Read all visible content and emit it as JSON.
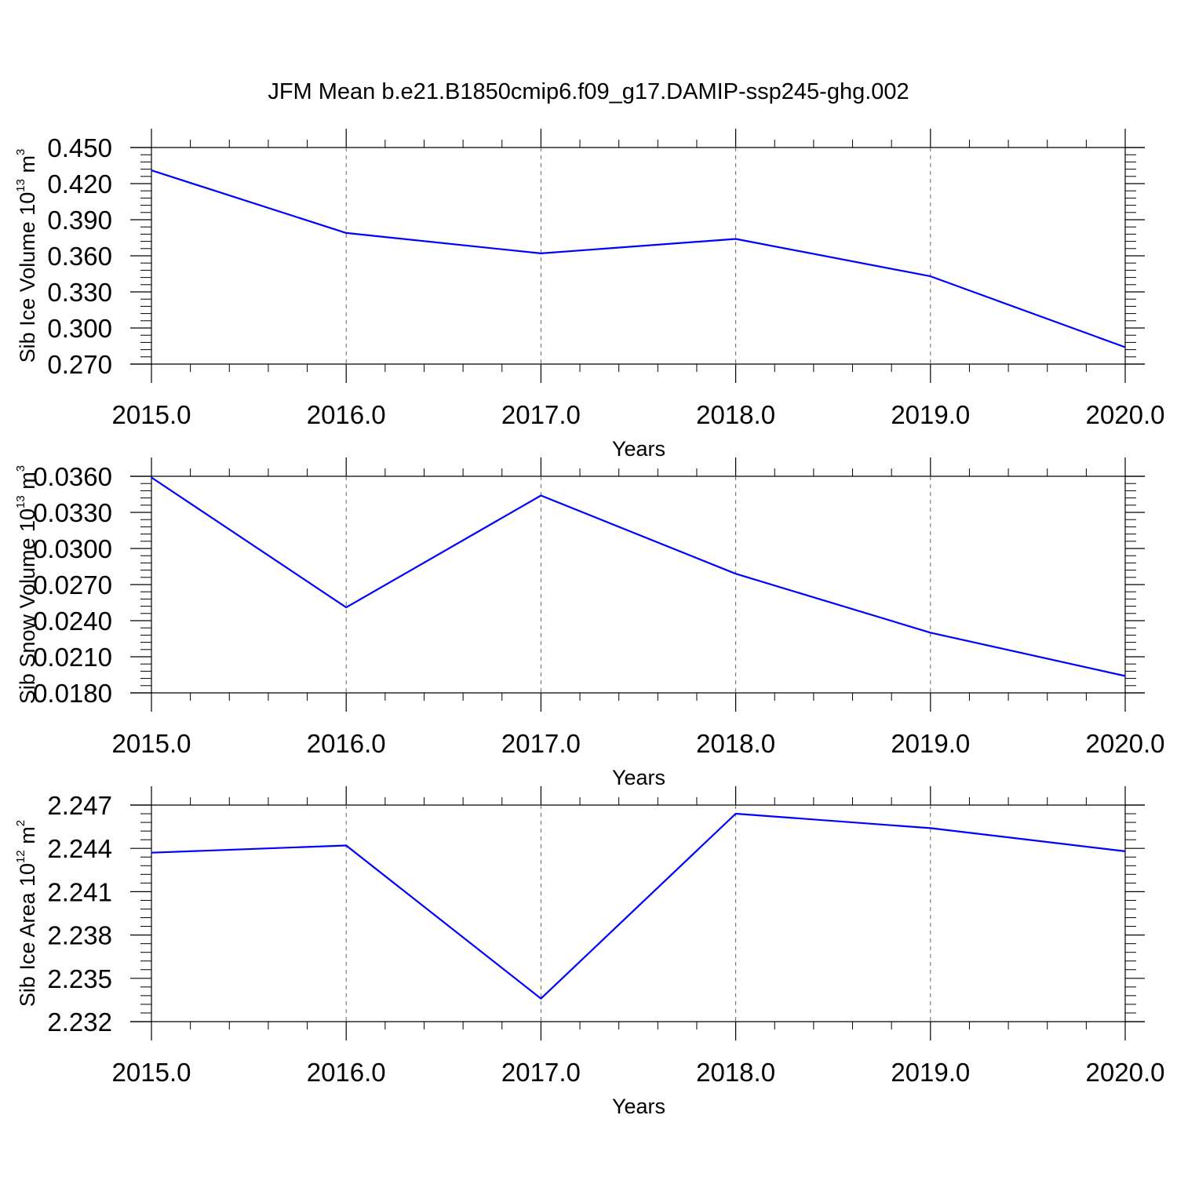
{
  "title": "JFM Mean b.e21.B1850cmip6.f09_g17.DAMIP-ssp245-ghg.002",
  "line_color": "#0000ff",
  "chart_data": [
    {
      "type": "line",
      "title": "",
      "xlabel": "Years",
      "ylabel": {
        "text": "Sib Ice Volume 10",
        "exp": "13",
        "unit": " m",
        "unit_exp": "3"
      },
      "x": [
        2015,
        2016,
        2017,
        2018,
        2019,
        2020
      ],
      "x_ticks": [
        "2015.0",
        "2016.0",
        "2017.0",
        "2018.0",
        "2019.0",
        "2020.0"
      ],
      "xlim": [
        2015,
        2020
      ],
      "y_ticks": [
        "0.450",
        "0.420",
        "0.390",
        "0.360",
        "0.330",
        "0.300",
        "0.270"
      ],
      "ylim": [
        0.27,
        0.45
      ],
      "grid": "vertical dashed",
      "series": [
        {
          "values": [
            0.431,
            0.379,
            0.362,
            0.374,
            0.343,
            0.284
          ]
        }
      ]
    },
    {
      "type": "line",
      "title": "",
      "xlabel": "Years",
      "ylabel": {
        "text": "Sib Snow Volume 10",
        "exp": "13",
        "unit": " m",
        "unit_exp": "3"
      },
      "x": [
        2015,
        2016,
        2017,
        2018,
        2019,
        2020
      ],
      "x_ticks": [
        "2015.0",
        "2016.0",
        "2017.0",
        "2018.0",
        "2019.0",
        "2020.0"
      ],
      "xlim": [
        2015,
        2020
      ],
      "y_ticks": [
        "0.0360",
        "0.0330",
        "0.0300",
        "0.0270",
        "0.0240",
        "0.0210",
        "0.0180"
      ],
      "ylim": [
        0.018,
        0.036
      ],
      "grid": "vertical dashed",
      "series": [
        {
          "values": [
            0.0359,
            0.0251,
            0.0344,
            0.0279,
            0.023,
            0.0194
          ]
        }
      ]
    },
    {
      "type": "line",
      "title": "",
      "xlabel": "Years",
      "ylabel": {
        "text": "Sib Ice Area 10",
        "exp": "12",
        "unit": " m",
        "unit_exp": "2"
      },
      "x": [
        2015,
        2016,
        2017,
        2018,
        2019,
        2020
      ],
      "x_ticks": [
        "2015.0",
        "2016.0",
        "2017.0",
        "2018.0",
        "2019.0",
        "2020.0"
      ],
      "xlim": [
        2015,
        2020
      ],
      "y_ticks": [
        "2.247",
        "2.244",
        "2.241",
        "2.238",
        "2.235",
        "2.232"
      ],
      "ylim": [
        2.232,
        2.247
      ],
      "grid": "vertical dashed",
      "series": [
        {
          "values": [
            2.2437,
            2.2442,
            2.2336,
            2.2464,
            2.2454,
            2.2438
          ]
        }
      ]
    }
  ]
}
